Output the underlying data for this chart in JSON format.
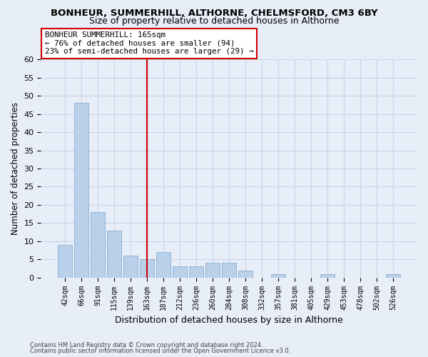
{
  "title1": "BONHEUR, SUMMERHILL, ALTHORNE, CHELMSFORD, CM3 6BY",
  "title2": "Size of property relative to detached houses in Althorne",
  "xlabel": "Distribution of detached houses by size in Althorne",
  "ylabel": "Number of detached properties",
  "categories": [
    "42sqm",
    "66sqm",
    "91sqm",
    "115sqm",
    "139sqm",
    "163sqm",
    "187sqm",
    "212sqm",
    "236sqm",
    "260sqm",
    "284sqm",
    "308sqm",
    "332sqm",
    "357sqm",
    "381sqm",
    "405sqm",
    "429sqm",
    "453sqm",
    "478sqm",
    "502sqm",
    "526sqm"
  ],
  "values": [
    9,
    48,
    18,
    13,
    6,
    5,
    7,
    3,
    3,
    4,
    4,
    2,
    0,
    1,
    0,
    0,
    1,
    0,
    0,
    0,
    1
  ],
  "bar_color": "#b8d0ea",
  "bar_edge_color": "#8aafd0",
  "vline_color": "#cc0000",
  "vline_index": 5,
  "annotation_line1": "BONHEUR SUMMERHILL: 165sqm",
  "annotation_line2": "← 76% of detached houses are smaller (94)",
  "annotation_line3": "23% of semi-detached houses are larger (29) →",
  "annotation_box_color": "#ffffff",
  "annotation_box_edge": "#cc0000",
  "ylim": [
    0,
    60
  ],
  "yticks": [
    0,
    5,
    10,
    15,
    20,
    25,
    30,
    35,
    40,
    45,
    50,
    55,
    60
  ],
  "grid_color": "#c8d4e8",
  "background_color": "#e8eef8",
  "footer1": "Contains HM Land Registry data © Crown copyright and database right 2024.",
  "footer2": "Contains public sector information licensed under the Open Government Licence v3.0."
}
